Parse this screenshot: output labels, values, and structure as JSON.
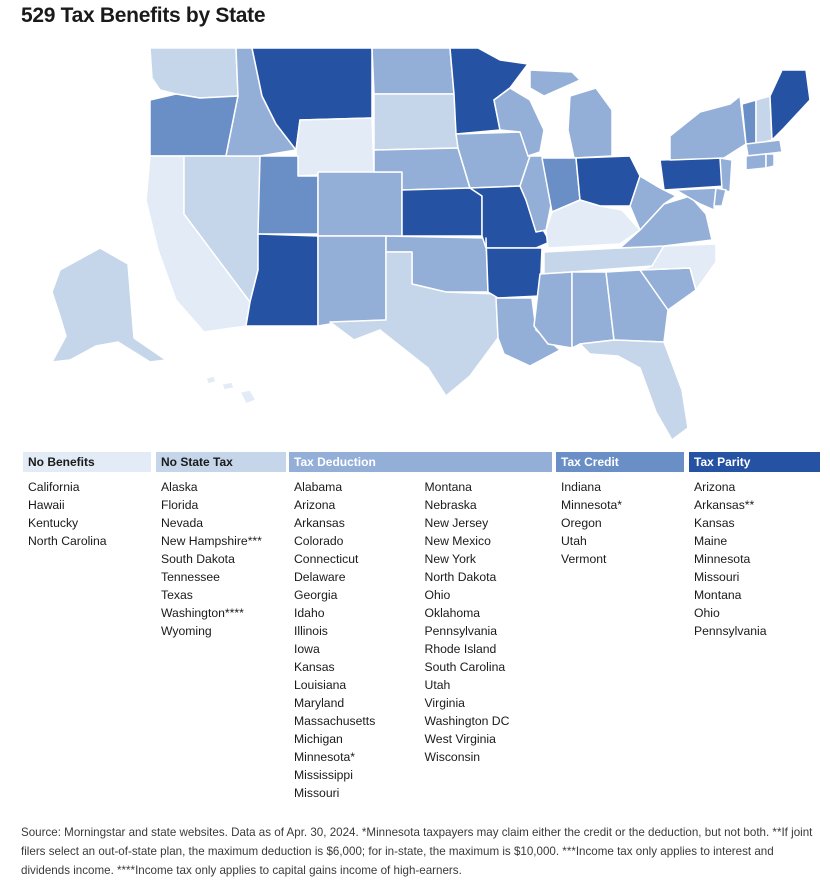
{
  "title": "529 Tax Benefits by State",
  "colors": {
    "no_benefits": "#e3ebf7",
    "no_state_tax": "#c5d5ea",
    "tax_deduction": "#93afd8",
    "tax_credit": "#6a8ec6",
    "tax_parity": "#2552a3"
  },
  "legend": {
    "no_benefits": {
      "label": "No Benefits",
      "states": [
        "California",
        "Hawaii",
        "Kentucky",
        "North Carolina"
      ]
    },
    "no_state_tax": {
      "label": "No State Tax",
      "states": [
        "Alaska",
        "Florida",
        "Nevada",
        "New Hampshire***",
        "South Dakota",
        "Tennessee",
        "Texas",
        "Washington****",
        "Wyoming"
      ]
    },
    "tax_deduction": {
      "label": "Tax Deduction",
      "states_col1": [
        "Alabama",
        "Arizona",
        "Arkansas",
        "Colorado",
        "Connecticut",
        "Delaware",
        "Georgia",
        "Idaho",
        "Illinois",
        "Iowa",
        "Kansas",
        "Louisiana",
        "Maryland",
        "Massachusetts",
        "Michigan",
        "Minnesota*",
        "Mississippi",
        "Missouri"
      ],
      "states_col2": [
        "Montana",
        "Nebraska",
        "New Jersey",
        "New Mexico",
        "New York",
        "North Dakota",
        "Ohio",
        "Oklahoma",
        "Pennsylvania",
        "Rhode Island",
        "South Carolina",
        "Utah",
        "Virginia",
        "Washington DC",
        "West Virginia",
        "Wisconsin"
      ]
    },
    "tax_credit": {
      "label": "Tax Credit",
      "states": [
        "Indiana",
        "Minnesota*",
        "Oregon",
        "Utah",
        "Vermont"
      ]
    },
    "tax_parity": {
      "label": "Tax Parity",
      "states": [
        "Arizona",
        "Arkansas**",
        "Kansas",
        "Maine",
        "Minnesota",
        "Missouri",
        "Montana",
        "Ohio",
        "Pennsylvania"
      ]
    }
  },
  "source": "Source: Morningstar and state websites. Data as of Apr. 30, 2024. *Minnesota taxpayers may claim either the credit or the deduction, but not both. **If joint filers select an out-of-state plan, the maximum deduction is $6,000; for in-state, the maximum is $10,000. ***Income tax only applies to interest and dividends income. ****Income tax only applies to capital gains income of high-earners."
}
